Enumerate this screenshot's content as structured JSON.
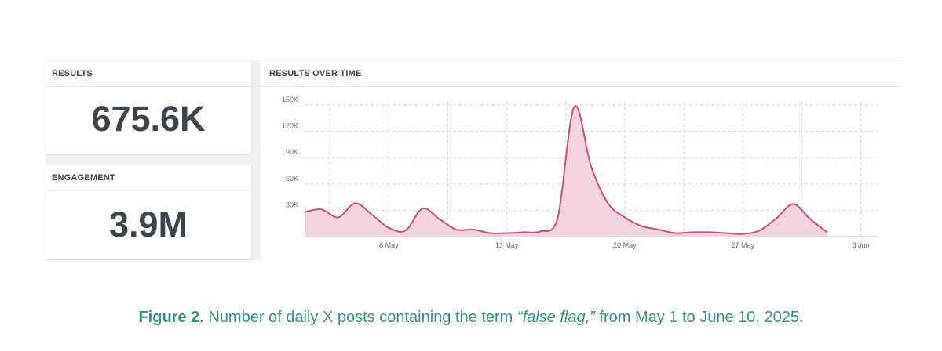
{
  "results_card": {
    "label": "RESULTS",
    "value": "675.6K"
  },
  "engagement_card": {
    "label": "ENGAGEMENT",
    "value": "3.9M"
  },
  "chart_panel": {
    "label": "RESULTS OVER TIME"
  },
  "caption": {
    "figure_number": "Figure 2.",
    "text_before": " Number of daily X posts containing the term ",
    "term": "“false flag,”",
    "text_after": " from May 1 to June 10, 2025."
  },
  "colors": {
    "line": "#c2527f",
    "fill": "#f3d3e0",
    "caption": "#3e8e7e",
    "grid": "#d7d7d7",
    "text": "#3a4149"
  },
  "chart_data": {
    "type": "area",
    "title": "RESULTS OVER TIME",
    "xlabel": "",
    "ylabel": "",
    "x_start_date": "2025-05-01",
    "x_end_date": "2025-06-04",
    "ylim": [
      0,
      150000
    ],
    "y_ticks": [
      30000,
      60000,
      90000,
      120000,
      150000
    ],
    "y_tick_labels": [
      "30K",
      "60K",
      "90K",
      "120K",
      "150K"
    ],
    "x_tick_dates": [
      "2025-05-06",
      "2025-05-13",
      "2025-05-20",
      "2025-05-27",
      "2025-06-03"
    ],
    "x_tick_labels": [
      "6 May",
      "13 May",
      "20 May",
      "27 May",
      "3 Jun"
    ],
    "grid": true,
    "legend": "none",
    "series": [
      {
        "x": [
          "2025-05-01",
          "2025-05-02",
          "2025-05-03",
          "2025-05-04",
          "2025-05-05",
          "2025-05-06",
          "2025-05-07",
          "2025-05-08",
          "2025-05-09",
          "2025-05-10",
          "2025-05-11",
          "2025-05-12",
          "2025-05-13",
          "2025-05-14",
          "2025-05-15",
          "2025-05-16",
          "2025-05-17",
          "2025-05-18",
          "2025-05-19",
          "2025-05-20",
          "2025-05-21",
          "2025-05-22",
          "2025-05-23",
          "2025-05-24",
          "2025-05-25",
          "2025-05-26",
          "2025-05-27",
          "2025-05-28",
          "2025-05-29",
          "2025-05-30",
          "2025-05-31",
          "2025-06-01",
          "2025-06-02",
          "2025-06-03",
          "2025-06-04"
        ],
        "y": [
          28000,
          31000,
          22000,
          38000,
          25000,
          10000,
          7000,
          32000,
          20000,
          8000,
          8000,
          4000,
          4000,
          5000,
          6000,
          20000,
          148000,
          80000,
          38000,
          22000,
          12000,
          8000,
          4000,
          5000,
          5000,
          4000,
          3000,
          7000,
          21000,
          37000,
          20000,
          5000,
          null,
          null,
          null
        ]
      }
    ]
  }
}
